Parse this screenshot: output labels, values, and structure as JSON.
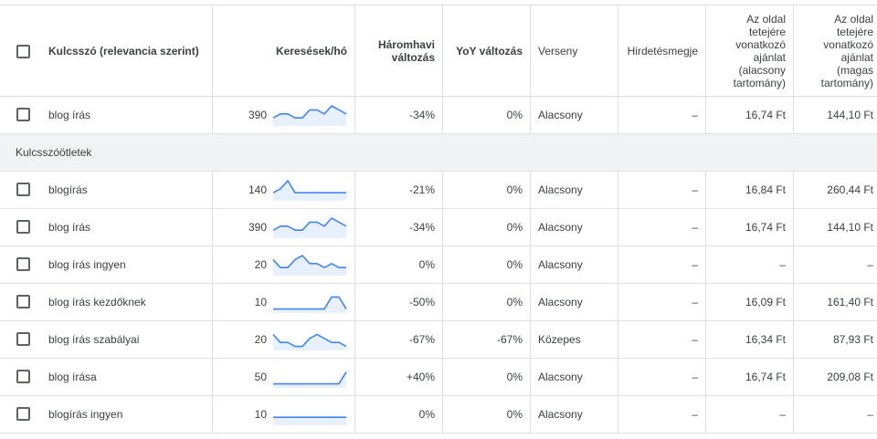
{
  "columns": {
    "keyword": "Kulcsszó (relevancia szerint)",
    "searches": "Keresések/hó",
    "three_month": [
      "Háromhavi",
      "változás"
    ],
    "yoy": "YoY változás",
    "competition": "Verseny",
    "ad_share": "Hirdetésmegje",
    "bid_low": [
      "Az oldal",
      "tetejére",
      "vonatkozó",
      "ajánlat",
      "(alacsony",
      "tartomány)"
    ],
    "bid_high": [
      "Az oldal",
      "tetejére",
      "vonatkozó",
      "ajánlat",
      "(magas",
      "tartomány)"
    ]
  },
  "section_label": "Kulcsszóötletek",
  "pinned_row": {
    "keyword": "blog írás",
    "searches": "390",
    "trend": [
      2,
      3,
      3,
      2,
      2,
      4,
      4,
      3,
      5,
      4,
      3
    ],
    "three_month": "-34%",
    "yoy": "0%",
    "competition": "Alacsony",
    "ad_share": "–",
    "bid_low": "16,74 Ft",
    "bid_high": "144,10 Ft"
  },
  "rows": [
    {
      "keyword": "blogírás",
      "searches": "140",
      "trend": [
        2,
        3,
        5,
        2,
        2,
        2,
        2,
        2,
        2,
        2,
        2
      ],
      "three_month": "-21%",
      "yoy": "0%",
      "competition": "Alacsony",
      "ad_share": "–",
      "bid_low": "16,84 Ft",
      "bid_high": "260,44 Ft"
    },
    {
      "keyword": "blog írás",
      "searches": "390",
      "trend": [
        2,
        3,
        3,
        2,
        2,
        4,
        4,
        3,
        5,
        4,
        3
      ],
      "three_month": "-34%",
      "yoy": "0%",
      "competition": "Alacsony",
      "ad_share": "–",
      "bid_low": "16,74 Ft",
      "bid_high": "144,10 Ft"
    },
    {
      "keyword": "blog írás ingyen",
      "searches": "20",
      "trend": [
        4,
        2,
        2,
        4,
        5,
        3,
        3,
        2,
        3,
        2,
        2
      ],
      "three_month": "0%",
      "yoy": "0%",
      "competition": "Alacsony",
      "ad_share": "–",
      "bid_low": "–",
      "bid_high": "–"
    },
    {
      "keyword": "blog írás kezdőknek",
      "searches": "10",
      "trend": [
        1,
        1,
        1,
        1,
        1,
        1,
        1,
        1,
        4,
        4,
        1
      ],
      "three_month": "-50%",
      "yoy": "0%",
      "competition": "Alacsony",
      "ad_share": "–",
      "bid_low": "16,09 Ft",
      "bid_high": "161,40 Ft"
    },
    {
      "keyword": "blog írás szabályai",
      "searches": "20",
      "trend": [
        4,
        2,
        2,
        1,
        1,
        3,
        4,
        3,
        2,
        2,
        1
      ],
      "three_month": "-67%",
      "yoy": "-67%",
      "competition": "Közepes",
      "ad_share": "–",
      "bid_low": "16,34 Ft",
      "bid_high": "87,93 Ft"
    },
    {
      "keyword": "blog írása",
      "searches": "50",
      "trend": [
        1,
        1,
        1,
        1,
        1,
        1,
        1,
        1,
        1,
        1,
        4
      ],
      "three_month": "+40%",
      "yoy": "0%",
      "competition": "Alacsony",
      "ad_share": "–",
      "bid_low": "16,74 Ft",
      "bid_high": "209,08 Ft"
    },
    {
      "keyword": "blogírás ingyen",
      "searches": "10",
      "trend": [
        2,
        2,
        2,
        2,
        2,
        2,
        2,
        2,
        2,
        2,
        2
      ],
      "three_month": "0%",
      "yoy": "0%",
      "competition": "Alacsony",
      "ad_share": "–",
      "bid_low": "–",
      "bid_high": "–"
    }
  ],
  "colors": {
    "sparkline": "#4285f4",
    "sparkline_fill": "#e8f0fe",
    "section_bg": "#f1f3f4"
  }
}
